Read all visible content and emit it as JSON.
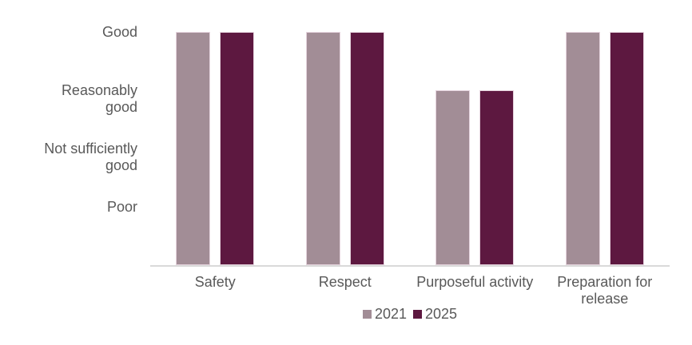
{
  "chart_data": {
    "type": "bar",
    "categories": [
      "Safety",
      "Respect",
      "Purposeful activity",
      "Preparation for release"
    ],
    "series": [
      {
        "name": "2021",
        "color": "#A28D96",
        "values": [
          4,
          4,
          3,
          4
        ]
      },
      {
        "name": "2025",
        "color": "#5D1840",
        "values": [
          4,
          4,
          3,
          4
        ]
      }
    ],
    "y_ticks": [
      {
        "value": 4,
        "label": "Good"
      },
      {
        "value": 3,
        "label": "Reasonably good"
      },
      {
        "value": 2,
        "label": "Not sufficiently good"
      },
      {
        "value": 1,
        "label": "Poor"
      }
    ],
    "ylim": [
      0,
      4
    ],
    "grid": false,
    "legend_position": "bottom",
    "legend_labels": [
      "2021",
      "2025"
    ]
  },
  "colors": {
    "series_2021": "#A28D96",
    "series_2025": "#5D1840",
    "bar_border": "#E5D3DD",
    "axis_line": "#D9D9D9",
    "label_text": "#595959",
    "background": "#FFFFFF"
  }
}
